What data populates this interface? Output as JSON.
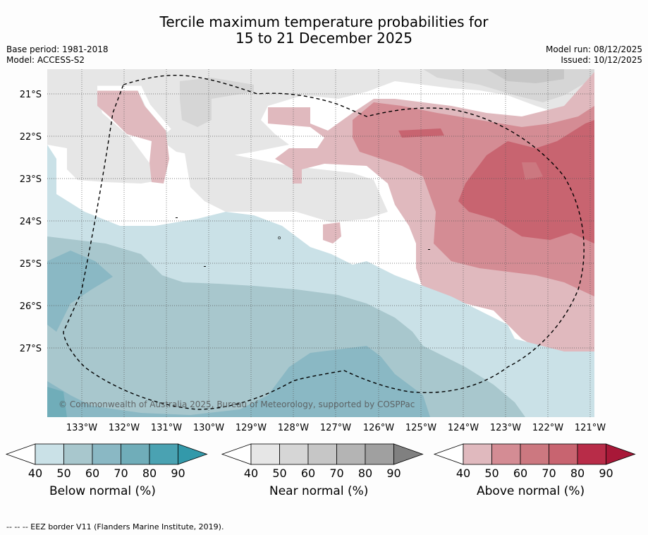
{
  "title": {
    "line1": "Tercile maximum temperature probabilities for",
    "line2": "15 to 21 December 2025"
  },
  "meta": {
    "base_period": "Base period: 1981-2018",
    "model": "Model: ACCESS-S2",
    "model_run": "Model run: 08/12/2025",
    "issued": "Issued: 10/12/2025"
  },
  "map": {
    "lat_labels": [
      "21°S",
      "22°S",
      "23°S",
      "24°S",
      "25°S",
      "26°S",
      "27°S"
    ],
    "lon_labels": [
      "133°W",
      "132°W",
      "131°W",
      "130°W",
      "129°W",
      "128°W",
      "127°W",
      "126°W",
      "125°W",
      "124°W",
      "123°W",
      "122°W",
      "121°W"
    ],
    "copyright": "© Commonwealth of Australia 2025, Bureau of Meteorology, supported by COSPPac"
  },
  "colorbars": [
    {
      "label": "Below normal (%)",
      "ticks": [
        "40",
        "50",
        "60",
        "70",
        "80",
        "90"
      ],
      "colors": [
        "#cae1e7",
        "#a8c7cd",
        "#8ab8c4",
        "#70adb9",
        "#4aa2b2",
        "#3399aa"
      ]
    },
    {
      "label": "Near normal (%)",
      "ticks": [
        "40",
        "50",
        "60",
        "70",
        "80",
        "90"
      ],
      "colors": [
        "#e6e6e6",
        "#d6d6d6",
        "#c6c6c6",
        "#b4b4b4",
        "#a0a0a0",
        "#808080"
      ]
    },
    {
      "label": "Above normal (%)",
      "ticks": [
        "40",
        "50",
        "60",
        "70",
        "80",
        "90"
      ],
      "colors": [
        "#e0b9be",
        "#d48c94",
        "#cc7880",
        "#c86470",
        "#b82c48",
        "#a81838"
      ]
    }
  ],
  "footer": "--  --  -- EEZ border V11 (Flanders Marine Institute, 2019)."
}
